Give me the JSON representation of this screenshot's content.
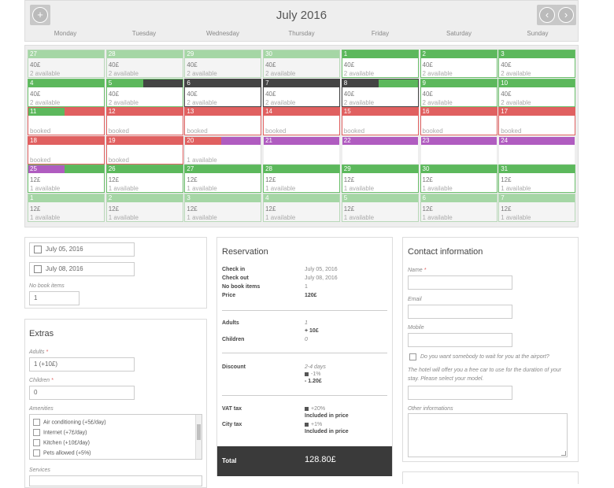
{
  "calendar": {
    "title": "July 2016",
    "prev_icon": "chevron-left-icon",
    "next_icon": "chevron-right-icon",
    "add_icon": "plus-icon",
    "days": [
      "Monday",
      "Tuesday",
      "Wednesday",
      "Thursday",
      "Friday",
      "Saturday",
      "Sunday"
    ],
    "rows": [
      [
        {
          "n": "27",
          "p": "40£",
          "a": "2 available",
          "s": "muted"
        },
        {
          "n": "28",
          "p": "40£",
          "a": "2 available",
          "s": "muted"
        },
        {
          "n": "29",
          "p": "40£",
          "a": "2 available",
          "s": "muted"
        },
        {
          "n": "30",
          "p": "40£",
          "a": "2 available",
          "s": "muted"
        },
        {
          "n": "1",
          "p": "40£",
          "a": "2 available",
          "s": "avail"
        },
        {
          "n": "2",
          "p": "40£",
          "a": "2 available",
          "s": "avail"
        },
        {
          "n": "3",
          "p": "40£",
          "a": "2 available",
          "s": "avail"
        }
      ],
      [
        {
          "n": "4",
          "p": "40£",
          "a": "2 available",
          "s": "avail"
        },
        {
          "n": "5",
          "p": "40£",
          "a": "2 available",
          "s": "selstart"
        },
        {
          "n": "6",
          "p": "40£",
          "a": "2 available",
          "s": "sel"
        },
        {
          "n": "7",
          "p": "40£",
          "a": "2 available",
          "s": "sel"
        },
        {
          "n": "8",
          "p": "40£",
          "a": "2 available",
          "s": "selend"
        },
        {
          "n": "9",
          "p": "40£",
          "a": "2 available",
          "s": "avail"
        },
        {
          "n": "10",
          "p": "40£",
          "a": "2 available",
          "s": "avail"
        }
      ],
      [
        {
          "n": "11",
          "p": "",
          "a": "booked",
          "s": "bookstart"
        },
        {
          "n": "12",
          "p": "",
          "a": "booked",
          "s": "booked"
        },
        {
          "n": "13",
          "p": "",
          "a": "booked",
          "s": "booked"
        },
        {
          "n": "14",
          "p": "",
          "a": "booked",
          "s": "booked"
        },
        {
          "n": "15",
          "p": "",
          "a": "booked",
          "s": "booked"
        },
        {
          "n": "16",
          "p": "",
          "a": "booked",
          "s": "booked"
        },
        {
          "n": "17",
          "p": "",
          "a": "booked",
          "s": "booked"
        }
      ],
      [
        {
          "n": "18",
          "p": "",
          "a": "booked",
          "s": "booked"
        },
        {
          "n": "19",
          "p": "",
          "a": "booked",
          "s": "booked"
        },
        {
          "n": "20",
          "p": "",
          "a": "1 available",
          "s": "bookend"
        },
        {
          "n": "21",
          "p": "",
          "a": "",
          "s": "purple"
        },
        {
          "n": "22",
          "p": "",
          "a": "",
          "s": "purple"
        },
        {
          "n": "23",
          "p": "",
          "a": "",
          "s": "purple"
        },
        {
          "n": "24",
          "p": "",
          "a": "",
          "s": "purple"
        }
      ],
      [
        {
          "n": "25",
          "p": "12£",
          "a": "1 available",
          "s": "purpleend"
        },
        {
          "n": "26",
          "p": "12£",
          "a": "1 available",
          "s": "avail"
        },
        {
          "n": "27",
          "p": "12£",
          "a": "1 available",
          "s": "avail"
        },
        {
          "n": "28",
          "p": "12£",
          "a": "1 available",
          "s": "avail"
        },
        {
          "n": "29",
          "p": "12£",
          "a": "1 available",
          "s": "avail"
        },
        {
          "n": "30",
          "p": "12£",
          "a": "1 available",
          "s": "avail"
        },
        {
          "n": "31",
          "p": "12£",
          "a": "1 available",
          "s": "avail"
        }
      ],
      [
        {
          "n": "1",
          "p": "12£",
          "a": "1 available",
          "s": "muted"
        },
        {
          "n": "2",
          "p": "12£",
          "a": "1 available",
          "s": "muted"
        },
        {
          "n": "3",
          "p": "12£",
          "a": "1 available",
          "s": "muted"
        },
        {
          "n": "4",
          "p": "12£",
          "a": "1 available",
          "s": "muted"
        },
        {
          "n": "5",
          "p": "12£",
          "a": "1 available",
          "s": "muted"
        },
        {
          "n": "6",
          "p": "12£",
          "a": "1 available",
          "s": "muted"
        },
        {
          "n": "7",
          "p": "12£",
          "a": "1 available",
          "s": "muted"
        }
      ]
    ]
  },
  "colors": {
    "green": "#5cb85c",
    "green_muted": "#a5d6a5",
    "red": "#e06060",
    "dark": "#444444",
    "purple": "#b05cc0",
    "total_bg": "#3a3a3a"
  },
  "booking": {
    "check_in": "July 05, 2016",
    "check_out": "July 08, 2016",
    "no_book_label": "No book items",
    "no_book_value": "1",
    "calendar_icon": "calendar-icon"
  },
  "extras": {
    "title": "Extras",
    "adults_label": "Adults",
    "adults_value": "1 (+10£)",
    "children_label": "Children",
    "children_value": "0",
    "amenities_label": "Amenities",
    "amenities": [
      "Air conditioning (+5£/day)",
      "Internet (+7£/day)",
      "Kitchen (+10£/day)",
      "Pets allowed (+5%)"
    ],
    "services_label": "Services",
    "required_mark": "*"
  },
  "reservation": {
    "title": "Reservation",
    "check_in_label": "Check in",
    "check_in_value": "July 05, 2016",
    "check_out_label": "Check out",
    "check_out_value": "July 08, 2016",
    "no_book_label": "No book items",
    "no_book_value": "1",
    "price_label": "Price",
    "price_value": "120£",
    "adults_label": "Adults",
    "adults_value": "1",
    "adults_extra": "+ 10£",
    "children_label": "Children",
    "children_value": "0",
    "discount_label": "Discount",
    "discount_range": "2-4 days",
    "discount_pct": "-1%",
    "discount_value": "- 1.20£",
    "vat_label": "VAT tax",
    "vat_pct": "+20%",
    "vat_note": "Included in price",
    "city_label": "City tax",
    "city_pct": "+1%",
    "city_note": "Included in price",
    "total_label": "Total",
    "total_value": "128.80£"
  },
  "contact": {
    "title": "Contact information",
    "name_label": "Name",
    "email_label": "Email",
    "mobile_label": "Mobile",
    "airport_label": "Do you want somebody to wait for you at the airport?",
    "airport_note": "The hotel will offer you a free car to use for the duration of your stay. Please select your model.",
    "other_label": "Other informations"
  }
}
